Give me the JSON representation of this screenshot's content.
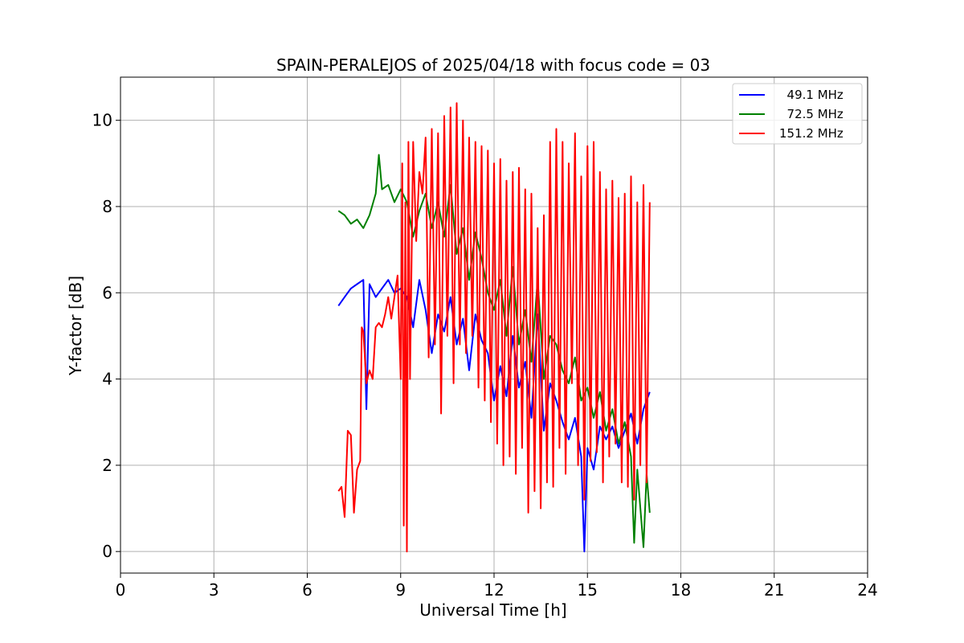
{
  "chart_data": {
    "type": "line",
    "title": "SPAIN-PERALEJOS of 2025/04/18 with focus code = 03",
    "xlabel": "Universal Time [h]",
    "ylabel": "Y-factor [dB]",
    "xlim": [
      0,
      24
    ],
    "ylim": [
      -0.5,
      11
    ],
    "xticks": [
      "0",
      "3",
      "6",
      "9",
      "12",
      "15",
      "18",
      "21",
      "24"
    ],
    "yticks": [
      "0",
      "2",
      "4",
      "6",
      "8",
      "10"
    ],
    "grid": true,
    "legend_position": "top-right",
    "series": [
      {
        "name": "  49.1 MHz",
        "color": "#0000ff",
        "x": [
          7.0,
          7.2,
          7.4,
          7.6,
          7.8,
          7.9,
          8.0,
          8.2,
          8.4,
          8.6,
          8.8,
          9.0,
          9.2,
          9.4,
          9.6,
          9.8,
          10.0,
          10.2,
          10.4,
          10.6,
          10.8,
          11.0,
          11.2,
          11.4,
          11.6,
          11.8,
          12.0,
          12.2,
          12.4,
          12.6,
          12.8,
          13.0,
          13.2,
          13.4,
          13.6,
          13.8,
          14.0,
          14.2,
          14.4,
          14.6,
          14.8,
          14.9,
          15.0,
          15.2,
          15.4,
          15.6,
          15.8,
          16.0,
          16.2,
          16.4,
          16.6,
          16.8,
          17.0
        ],
        "y": [
          5.7,
          5.9,
          6.1,
          6.2,
          6.3,
          3.3,
          6.2,
          5.9,
          6.1,
          6.3,
          6.0,
          6.1,
          5.9,
          5.2,
          6.3,
          5.6,
          4.6,
          5.5,
          5.1,
          5.9,
          4.8,
          5.4,
          4.2,
          5.5,
          4.9,
          4.6,
          3.5,
          4.3,
          3.6,
          5.0,
          3.8,
          4.4,
          3.1,
          5.5,
          2.8,
          3.9,
          3.5,
          3.0,
          2.6,
          3.1,
          2.2,
          0.0,
          2.4,
          1.9,
          2.9,
          2.6,
          2.9,
          2.4,
          2.8,
          3.2,
          2.5,
          3.3,
          3.7
        ]
      },
      {
        "name": "  72.5 MHz",
        "color": "#008000",
        "x": [
          7.0,
          7.2,
          7.4,
          7.6,
          7.8,
          8.0,
          8.2,
          8.3,
          8.4,
          8.6,
          8.8,
          9.0,
          9.2,
          9.4,
          9.6,
          9.8,
          10.0,
          10.2,
          10.4,
          10.6,
          10.8,
          11.0,
          11.2,
          11.4,
          11.6,
          11.8,
          12.0,
          12.2,
          12.4,
          12.6,
          12.8,
          13.0,
          13.2,
          13.4,
          13.6,
          13.8,
          14.0,
          14.2,
          14.4,
          14.6,
          14.8,
          15.0,
          15.2,
          15.4,
          15.6,
          15.8,
          16.0,
          16.2,
          16.4,
          16.5,
          16.6,
          16.8,
          16.9,
          17.0
        ],
        "y": [
          7.9,
          7.8,
          7.6,
          7.7,
          7.5,
          7.8,
          8.3,
          9.2,
          8.4,
          8.5,
          8.1,
          8.4,
          8.1,
          7.3,
          7.9,
          8.3,
          7.5,
          8.1,
          7.3,
          8.5,
          6.9,
          7.5,
          6.3,
          7.4,
          6.8,
          6.0,
          5.6,
          6.3,
          5.0,
          6.6,
          4.8,
          5.6,
          4.4,
          6.3,
          4.0,
          5.0,
          4.8,
          4.2,
          3.9,
          4.5,
          3.5,
          3.8,
          3.1,
          3.7,
          2.8,
          3.3,
          2.5,
          3.0,
          2.2,
          0.2,
          1.9,
          0.1,
          1.8,
          0.9
        ]
      },
      {
        "name": "151.2 MHz",
        "color": "#ff0000",
        "x": [
          7.0,
          7.1,
          7.2,
          7.3,
          7.4,
          7.5,
          7.6,
          7.7,
          7.75,
          7.8,
          7.9,
          8.0,
          8.1,
          8.2,
          8.3,
          8.4,
          8.5,
          8.6,
          8.7,
          8.8,
          8.9,
          9.0,
          9.05,
          9.1,
          9.15,
          9.2,
          9.25,
          9.3,
          9.4,
          9.5,
          9.6,
          9.7,
          9.8,
          9.9,
          10.0,
          10.1,
          10.2,
          10.3,
          10.4,
          10.5,
          10.6,
          10.7,
          10.8,
          10.9,
          11.0,
          11.1,
          11.2,
          11.3,
          11.4,
          11.5,
          11.6,
          11.7,
          11.8,
          11.9,
          12.0,
          12.1,
          12.2,
          12.3,
          12.4,
          12.5,
          12.6,
          12.7,
          12.8,
          12.9,
          13.0,
          13.1,
          13.2,
          13.3,
          13.4,
          13.5,
          13.6,
          13.7,
          13.8,
          13.9,
          14.0,
          14.1,
          14.2,
          14.3,
          14.4,
          14.5,
          14.6,
          14.7,
          14.8,
          14.9,
          15.0,
          15.1,
          15.2,
          15.3,
          15.4,
          15.5,
          15.6,
          15.7,
          15.8,
          15.9,
          16.0,
          16.1,
          16.2,
          16.3,
          16.4,
          16.5,
          16.6,
          16.7,
          16.8,
          16.9,
          17.0
        ],
        "y": [
          1.4,
          1.5,
          0.8,
          2.8,
          2.7,
          0.9,
          1.9,
          2.1,
          5.2,
          5.1,
          3.9,
          4.2,
          4.0,
          5.2,
          5.3,
          5.2,
          5.5,
          5.9,
          5.4,
          5.9,
          6.4,
          4.0,
          9.0,
          0.6,
          8.1,
          0.0,
          9.5,
          4.0,
          9.5,
          7.2,
          8.8,
          8.3,
          9.6,
          4.5,
          9.8,
          4.8,
          9.7,
          3.2,
          10.1,
          5.0,
          10.3,
          3.9,
          10.4,
          4.8,
          10.0,
          4.6,
          9.6,
          5.0,
          9.5,
          3.8,
          9.4,
          3.5,
          9.3,
          3.0,
          9.0,
          2.5,
          9.1,
          2.0,
          8.6,
          2.2,
          8.8,
          1.8,
          8.9,
          2.4,
          8.4,
          0.9,
          8.3,
          1.4,
          7.5,
          1.0,
          7.8,
          1.6,
          9.5,
          1.5,
          9.8,
          2.4,
          9.5,
          1.8,
          9.0,
          3.9,
          9.7,
          2.0,
          8.7,
          1.2,
          9.4,
          2.1,
          9.5,
          2.3,
          8.8,
          1.6,
          8.4,
          2.2,
          8.6,
          2.5,
          8.2,
          1.6,
          8.3,
          1.5,
          8.7,
          1.2,
          8.1,
          2.0,
          8.5,
          1.6,
          8.1
        ]
      }
    ]
  }
}
